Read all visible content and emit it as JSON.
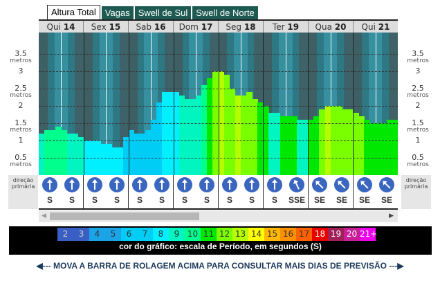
{
  "tabs": [
    "Altura Total",
    "Vagas",
    "Swell de Sul",
    "Swell de Norte"
  ],
  "active_tab": 0,
  "days": [
    {
      "dow": "Qui",
      "num": "14"
    },
    {
      "dow": "Sex",
      "num": "15"
    },
    {
      "dow": "Sab",
      "num": "16"
    },
    {
      "dow": "Dom",
      "num": "17"
    },
    {
      "dow": "Seg",
      "num": "18"
    },
    {
      "dow": "Ter",
      "num": "19"
    },
    {
      "dow": "Qua",
      "num": "20"
    },
    {
      "dow": "Qui",
      "num": "21"
    }
  ],
  "axis": {
    "unit": "metros",
    "ticks": [
      "3.5",
      "3",
      "2.5",
      "2",
      "1.5",
      "1",
      "0.5"
    ],
    "labelled_unit_ticks": [
      "3.5",
      "2.5",
      "1.5",
      "0.5"
    ]
  },
  "direction_label": "direção primária",
  "directions": [
    "S",
    "S",
    "S",
    "S",
    "S",
    "S",
    "S",
    "S",
    "S",
    "S",
    "S",
    "SSE",
    "SE",
    "SE",
    "SE",
    "SE"
  ],
  "direction_arrow_rotation_deg": [
    0,
    0,
    0,
    0,
    0,
    0,
    0,
    0,
    0,
    0,
    0,
    -25,
    -45,
    -45,
    -45,
    -45
  ],
  "chart_data": {
    "type": "bar",
    "ylabel": "metros",
    "ylim": [
      0,
      4.1
    ],
    "heights_m": [
      1.2,
      1.3,
      1.3,
      1.4,
      1.3,
      1.2,
      1.2,
      1.1,
      1.0,
      1.0,
      1.0,
      0.9,
      0.9,
      0.8,
      0.8,
      1.1,
      1.3,
      1.2,
      1.2,
      1.3,
      1.6,
      2.1,
      2.4,
      2.4,
      2.4,
      2.3,
      2.2,
      2.2,
      2.3,
      2.6,
      2.8,
      3.0,
      3.0,
      2.9,
      2.5,
      2.3,
      2.3,
      2.4,
      2.2,
      2.1,
      2.0,
      1.8,
      1.8,
      1.7,
      1.7,
      1.7,
      1.6,
      1.6,
      1.6,
      1.7,
      1.9,
      2.0,
      2.0,
      2.0,
      1.9,
      1.9,
      1.8,
      1.7,
      1.6,
      1.5,
      1.5,
      1.5,
      1.6,
      1.6
    ],
    "periods_s": [
      9,
      10,
      10,
      10,
      10,
      9,
      9,
      9,
      8,
      8,
      8,
      8,
      8,
      8,
      8,
      7,
      7,
      7,
      7,
      7,
      7,
      7,
      8,
      8,
      8,
      9,
      9,
      9,
      9,
      10,
      11,
      12,
      13,
      12,
      12,
      13,
      12,
      12,
      12,
      11,
      11,
      9,
      9,
      11,
      11,
      11,
      9,
      9,
      11,
      11,
      12,
      13,
      12,
      12,
      12,
      12,
      12,
      12,
      11,
      11,
      11,
      11,
      11,
      11
    ]
  },
  "period_scale": {
    "labels": [
      "2",
      "3",
      "4",
      "5",
      "6",
      "7",
      "8",
      "9",
      "10",
      "11",
      "12",
      "13",
      "14",
      "15",
      "16",
      "17",
      "18",
      "19",
      "20",
      "21+"
    ],
    "colors": [
      "#3a5fc4",
      "#3a5fc4",
      "#1ba3e8",
      "#1ba3e8",
      "#00cdf5",
      "#00cdf5",
      "#00f0ff",
      "#00f5c0",
      "#00ff8c",
      "#00e800",
      "#7aff00",
      "#b4ff00",
      "#ffff00",
      "#ffb800",
      "#ff9000",
      "#ff6000",
      "#e80000",
      "#a0205a",
      "#c81e96",
      "#ee00ee"
    ],
    "caption": "cor do gráfico: escala de Período, em segundos (S)"
  },
  "footer": "◀--- MOVA A BARRA DE ROLAGEM ACIMA PARA CONSULTAR MAIS DIAS DE PREVISÃO ---▶"
}
